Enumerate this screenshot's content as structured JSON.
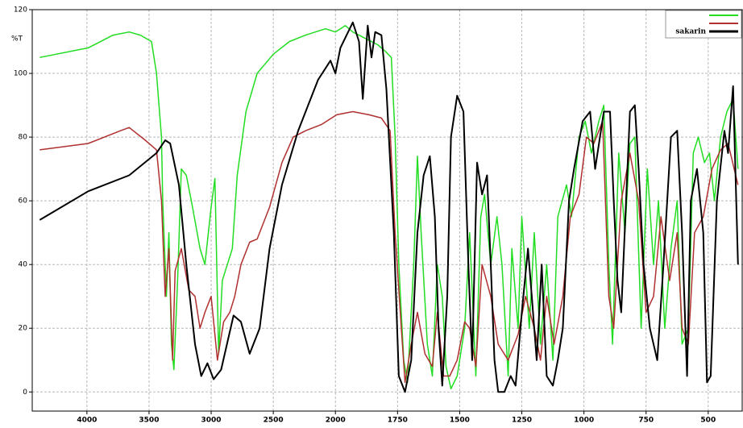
{
  "chart_data": {
    "type": "line",
    "y_label": "%T",
    "xlim": [
      4440,
      360
    ],
    "xticks": [
      4000,
      3500,
      3000,
      2500,
      2000,
      1750,
      1500,
      1250,
      1000,
      750,
      500
    ],
    "ylim": [
      -6,
      120
    ],
    "yticks": [
      0,
      20,
      40,
      60,
      80,
      100,
      120
    ],
    "grid": true,
    "legend": "top-right",
    "series": [
      {
        "color": "#22dd22",
        "x": [
          4380,
          3990,
          3790,
          3660,
          3570,
          3480,
          3440,
          3400,
          3390,
          3360,
          3340,
          3320,
          3300,
          3270,
          3240,
          3200,
          3150,
          3090,
          3050,
          3000,
          2970,
          2940,
          2910,
          2870,
          2830,
          2790,
          2720,
          2630,
          2500,
          2370,
          2240,
          2080,
          2000,
          1960,
          1930,
          1880,
          1830,
          1800,
          1775,
          1760,
          1745,
          1725,
          1710,
          1685,
          1670,
          1655,
          1630,
          1610,
          1590,
          1570,
          1555,
          1535,
          1510,
          1480,
          1460,
          1435,
          1415,
          1400,
          1375,
          1350,
          1330,
          1305,
          1290,
          1265,
          1250,
          1220,
          1200,
          1175,
          1150,
          1125,
          1105,
          1070,
          1050,
          1020,
          995,
          970,
          940,
          920,
          900,
          885,
          860,
          835,
          815,
          795,
          770,
          745,
          720,
          700,
          675,
          650,
          625,
          605,
          580,
          560,
          540,
          515,
          495,
          475,
          450,
          425,
          400,
          380
        ],
        "values": [
          105,
          108,
          112,
          113,
          112,
          110,
          100,
          80,
          60,
          30,
          50,
          15,
          7,
          35,
          70,
          68,
          58,
          45,
          40,
          58,
          67,
          12,
          35,
          40,
          45,
          68,
          88,
          100,
          106,
          110,
          112,
          114,
          113,
          115,
          113,
          111,
          109,
          107,
          105,
          80,
          40,
          10,
          3,
          40,
          74,
          50,
          15,
          5,
          40,
          30,
          8,
          1,
          5,
          20,
          50,
          5,
          55,
          62,
          40,
          55,
          40,
          5,
          45,
          20,
          55,
          20,
          50,
          15,
          40,
          10,
          55,
          65,
          55,
          80,
          85,
          75,
          85,
          90,
          40,
          15,
          75,
          50,
          78,
          80,
          20,
          70,
          40,
          60,
          20,
          45,
          60,
          15,
          20,
          75,
          80,
          72,
          75,
          60,
          80,
          88,
          92,
          70
        ]
      },
      {
        "color": "#b03030",
        "x": [
          4380,
          3990,
          3730,
          3660,
          3530,
          3440,
          3400,
          3370,
          3340,
          3310,
          3290,
          3240,
          3180,
          3130,
          3090,
          3050,
          3000,
          2950,
          2900,
          2850,
          2810,
          2760,
          2690,
          2630,
          2530,
          2430,
          2340,
          2240,
          2110,
          1995,
          1930,
          1865,
          1815,
          1780,
          1760,
          1735,
          1720,
          1695,
          1670,
          1640,
          1610,
          1590,
          1565,
          1540,
          1510,
          1480,
          1460,
          1435,
          1410,
          1375,
          1345,
          1305,
          1265,
          1235,
          1200,
          1175,
          1150,
          1120,
          1085,
          1055,
          1020,
          990,
          960,
          925,
          900,
          880,
          850,
          815,
          780,
          750,
          720,
          690,
          655,
          625,
          605,
          580,
          555,
          520,
          485,
          450,
          420,
          380
        ],
        "values": [
          76,
          78,
          82,
          83,
          79,
          76,
          60,
          30,
          45,
          10,
          38,
          45,
          32,
          30,
          20,
          25,
          30,
          10,
          22,
          25,
          30,
          40,
          47,
          48,
          58,
          72,
          80,
          82,
          84,
          87,
          88,
          87,
          86,
          82,
          50,
          20,
          3,
          15,
          25,
          12,
          8,
          25,
          5,
          5,
          10,
          22,
          20,
          8,
          40,
          30,
          15,
          10,
          18,
          30,
          20,
          10,
          30,
          15,
          30,
          55,
          62,
          80,
          78,
          85,
          30,
          20,
          60,
          75,
          60,
          25,
          30,
          55,
          35,
          50,
          20,
          15,
          50,
          55,
          70,
          76,
          78,
          65
        ]
      },
      {
        "name": "sakarin",
        "color": "#000000",
        "x": [
          4380,
          3990,
          3660,
          3440,
          3370,
          3330,
          3260,
          3200,
          3130,
          3080,
          3030,
          2980,
          2920,
          2820,
          2760,
          2690,
          2610,
          2530,
          2430,
          2300,
          2140,
          2040,
          2000,
          1980,
          1955,
          1930,
          1905,
          1890,
          1870,
          1855,
          1840,
          1815,
          1795,
          1765,
          1745,
          1720,
          1695,
          1670,
          1645,
          1620,
          1600,
          1585,
          1570,
          1550,
          1535,
          1510,
          1485,
          1465,
          1450,
          1430,
          1410,
          1390,
          1375,
          1360,
          1345,
          1320,
          1295,
          1275,
          1250,
          1225,
          1210,
          1190,
          1170,
          1150,
          1125,
          1105,
          1085,
          1060,
          1040,
          1005,
          975,
          955,
          920,
          895,
          880,
          865,
          850,
          815,
          795,
          780,
          760,
          735,
          705,
          680,
          650,
          625,
          605,
          585,
          570,
          545,
          520,
          505,
          490,
          465,
          435,
          420,
          400,
          380
        ],
        "values": [
          54,
          63,
          68,
          75,
          79,
          78,
          65,
          40,
          15,
          5,
          9,
          4,
          7,
          24,
          22,
          12,
          20,
          45,
          65,
          82,
          98,
          104,
          100,
          108,
          112,
          116,
          110,
          92,
          115,
          105,
          113,
          112,
          95,
          50,
          5,
          0,
          10,
          50,
          68,
          74,
          55,
          20,
          2,
          30,
          80,
          93,
          88,
          40,
          10,
          72,
          62,
          68,
          40,
          10,
          0,
          0,
          5,
          2,
          25,
          45,
          30,
          10,
          40,
          5,
          2,
          10,
          20,
          60,
          70,
          85,
          88,
          70,
          88,
          88,
          60,
          35,
          25,
          88,
          90,
          70,
          40,
          20,
          10,
          40,
          80,
          82,
          50,
          5,
          60,
          70,
          50,
          3,
          5,
          60,
          82,
          75,
          96,
          40
        ]
      }
    ]
  }
}
